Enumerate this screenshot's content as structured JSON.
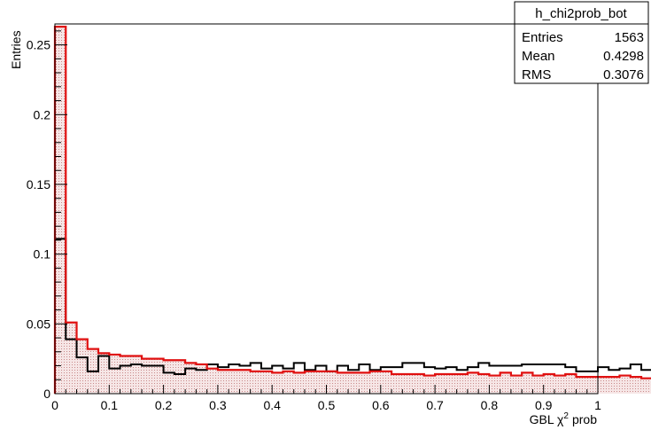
{
  "chart_data": {
    "type": "histogram",
    "xlabel_main": "GBL",
    "xlabel_greek": "χ",
    "xlabel_sup": "2",
    "xlabel_tail": "prob",
    "ylabel": "Entries",
    "xlim": [
      0,
      1
    ],
    "ylim": [
      0,
      0.265
    ],
    "x_ticks": [
      0,
      0.1,
      0.2,
      0.3,
      0.4,
      0.5,
      0.6,
      0.7,
      0.8,
      0.9,
      1
    ],
    "x_tick_labels": [
      "0",
      "0.1",
      "0.2",
      "0.3",
      "0.4",
      "0.5",
      "0.6",
      "0.7",
      "0.8",
      "0.9",
      "1"
    ],
    "y_ticks": [
      0,
      0.05,
      0.1,
      0.15,
      0.2,
      0.25
    ],
    "y_tick_labels": [
      "0",
      "0.05",
      "0.1",
      "0.15",
      "0.2",
      "0.25"
    ],
    "bin_width": 0.02,
    "grid": false,
    "series": [
      {
        "color": "#000000",
        "values": [
          0.111,
          0.039,
          0.026,
          0.016,
          0.027,
          0.018,
          0.02,
          0.021,
          0.02,
          0.02,
          0.015,
          0.014,
          0.018,
          0.017,
          0.021,
          0.019,
          0.021,
          0.02,
          0.022,
          0.018,
          0.02,
          0.018,
          0.022,
          0.017,
          0.02,
          0.016,
          0.02,
          0.017,
          0.021,
          0.017,
          0.019,
          0.019,
          0.022,
          0.022,
          0.019,
          0.018,
          0.019,
          0.017,
          0.019,
          0.022,
          0.02,
          0.02,
          0.02,
          0.021,
          0.021,
          0.021,
          0.021,
          0.019,
          0.016,
          0.016,
          0.019,
          0.017,
          0.018,
          0.021,
          0.017,
          0.02,
          0.018,
          0.02,
          0.019,
          0.017,
          0.018,
          0.018,
          0.02,
          0.016,
          0.018,
          0.016,
          0.02,
          0.017,
          0.019,
          0.019,
          0.02,
          0.016,
          0.014,
          0.014,
          0.016,
          0.014,
          0.018,
          0.018,
          0.018,
          0.016,
          0.016,
          0.015,
          0.019,
          0.015,
          0.017,
          0.016,
          0.017,
          0.02,
          0.017,
          0.017,
          0.016,
          0.013,
          0.012,
          0.014,
          0.018,
          0.016,
          0.018,
          0.014,
          0.018,
          0.018
        ]
      },
      {
        "color": "#e01010",
        "fill": "#f3dede",
        "values": [
          0.263,
          0.051,
          0.039,
          0.032,
          0.029,
          0.028,
          0.027,
          0.027,
          0.025,
          0.025,
          0.024,
          0.024,
          0.022,
          0.021,
          0.018,
          0.017,
          0.017,
          0.017,
          0.016,
          0.016,
          0.015,
          0.016,
          0.015,
          0.016,
          0.016,
          0.016,
          0.015,
          0.015,
          0.015,
          0.016,
          0.016,
          0.014,
          0.014,
          0.014,
          0.013,
          0.014,
          0.014,
          0.014,
          0.015,
          0.014,
          0.013,
          0.015,
          0.013,
          0.015,
          0.013,
          0.014,
          0.013,
          0.014,
          0.012,
          0.012,
          0.012,
          0.012,
          0.013,
          0.012,
          0.011,
          0.013,
          0.012,
          0.014,
          0.012,
          0.013,
          0.011,
          0.012,
          0.013,
          0.011,
          0.014,
          0.011,
          0.012,
          0.011,
          0.013,
          0.012,
          0.013,
          0.011,
          0.011,
          0.012,
          0.013,
          0.013,
          0.012,
          0.012,
          0.011,
          0.011,
          0.012,
          0.012,
          0.011,
          0.011,
          0.012,
          0.012,
          0.011,
          0.011,
          0.011,
          0.01,
          0.011,
          0.01,
          0.009,
          0.009,
          0.012,
          0.009,
          0.009,
          0.01,
          0.008,
          0.008
        ]
      }
    ]
  },
  "stats_box": {
    "title": "h_chi2prob_bot",
    "rows": [
      {
        "label": "Entries",
        "value": "1563"
      },
      {
        "label": "Mean",
        "value": "0.4298"
      },
      {
        "label": "RMS",
        "value": "0.3076"
      }
    ]
  }
}
